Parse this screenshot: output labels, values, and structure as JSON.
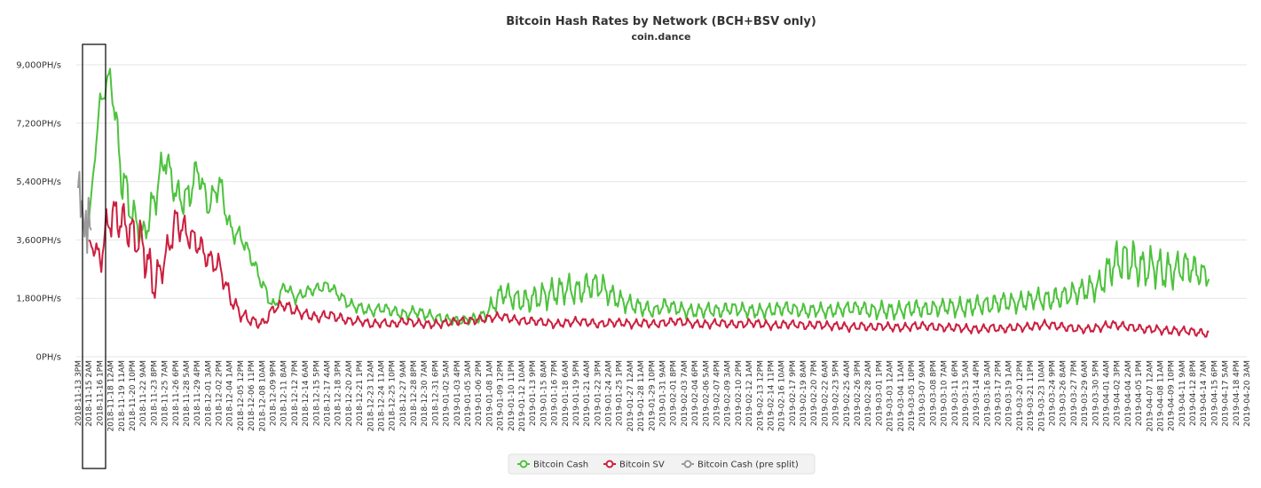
{
  "chart_data": {
    "type": "line",
    "title": "Bitcoin Hash Rates by Network (BCH+BSV only)",
    "subtitle": "coin.dance",
    "y_unit": "PH/s",
    "ylim": [
      0,
      9000
    ],
    "y_ticks": [
      "0PH/s",
      "1,800PH/s",
      "3,600PH/s",
      "5,400PH/s",
      "7,200PH/s",
      "9,000PH/s"
    ],
    "y_tick_values": [
      0,
      1800,
      3600,
      5400,
      7200,
      9000
    ],
    "x_labels": [
      "2018-11-13 3PM",
      "2018-11-15 2AM",
      "2018-11-16 1PM",
      "2018-11-18 12AM",
      "2018-11-19 11AM",
      "2018-11-20 10PM",
      "2018-11-22 9AM",
      "2018-11-23 8PM",
      "2018-11-25 7AM",
      "2018-11-26 6PM",
      "2018-11-28 5AM",
      "2018-11-29 4PM",
      "2018-12-01 3AM",
      "2018-12-02 2PM",
      "2018-12-04 1AM",
      "2018-12-05 12PM",
      "2018-12-06 11PM",
      "2018-12-08 10AM",
      "2018-12-09 9PM",
      "2018-12-11 8AM",
      "2018-12-12 7PM",
      "2018-12-14 6AM",
      "2018-12-15 5PM",
      "2018-12-17 4AM",
      "2018-12-18 3PM",
      "2018-12-20 2AM",
      "2018-12-21 1PM",
      "2018-12-23 12AM",
      "2018-12-24 11AM",
      "2018-12-25 10PM",
      "2018-12-27 9AM",
      "2018-12-28 8PM",
      "2018-12-30 7AM",
      "2018-12-31 6PM",
      "2019-01-02 5AM",
      "2019-01-03 4PM",
      "2019-01-05 3AM",
      "2019-01-06 2PM",
      "2019-01-08 1AM",
      "2019-01-09 12PM",
      "2019-01-10 11PM",
      "2019-01-12 10AM",
      "2019-01-13 9PM",
      "2019-01-15 8AM",
      "2019-01-16 7PM",
      "2019-01-18 6AM",
      "2019-01-19 5PM",
      "2019-01-21 4AM",
      "2019-01-22 3PM",
      "2019-01-24 2AM",
      "2019-01-25 1PM",
      "2019-01-27 12AM",
      "2019-01-28 11AM",
      "2019-01-29 10PM",
      "2019-01-31 9AM",
      "2019-02-01 8PM",
      "2019-02-03 7AM",
      "2019-02-04 6PM",
      "2019-02-06 5AM",
      "2019-02-07 4PM",
      "2019-02-09 3AM",
      "2019-02-10 2PM",
      "2019-02-12 1AM",
      "2019-02-13 12PM",
      "2019-02-14 11PM",
      "2019-02-16 10AM",
      "2019-02-17 9PM",
      "2019-02-19 8AM",
      "2019-02-20 7PM",
      "2019-02-22 6AM",
      "2019-02-23 5PM",
      "2019-02-25 4AM",
      "2019-02-26 3PM",
      "2019-02-28 2AM",
      "2019-03-01 1PM",
      "2019-03-03 12AM",
      "2019-03-04 11AM",
      "2019-03-05 10PM",
      "2019-03-07 9AM",
      "2019-03-08 8PM",
      "2019-03-10 7AM",
      "2019-03-11 6PM",
      "2019-03-13 5AM",
      "2019-03-14 4PM",
      "2019-03-16 3AM",
      "2019-03-17 2PM",
      "2019-03-19 1AM",
      "2019-03-20 12PM",
      "2019-03-21 11PM",
      "2019-03-23 10AM",
      "2019-03-24 9PM",
      "2019-03-26 8AM",
      "2019-03-27 7PM",
      "2019-03-29 6AM",
      "2019-03-30 5PM",
      "2019-04-01 4AM",
      "2019-04-02 3PM",
      "2019-04-04 2AM",
      "2019-04-05 1PM",
      "2019-04-07 12AM",
      "2019-04-08 11AM",
      "2019-04-09 10PM",
      "2019-04-11 9AM",
      "2019-04-12 8PM",
      "2019-04-14 7AM",
      "2019-04-15 6PM",
      "2019-04-17 5AM",
      "2019-04-18 4PM",
      "2019-04-20 3AM"
    ],
    "series": [
      {
        "name": "Bitcoin Cash",
        "color": "#4ec23e",
        "x_start": 1,
        "x_end": 104.5,
        "values": [
          4200,
          7800,
          8700,
          5600,
          4400,
          3700,
          4800,
          6200,
          5000,
          4800,
          5800,
          4600,
          5400,
          3900,
          3700,
          3000,
          2200,
          1500,
          2200,
          1800,
          2000,
          2100,
          2200,
          1900,
          1600,
          1500,
          1400,
          1500,
          1400,
          1300,
          1400,
          1300,
          1200,
          1150,
          1100,
          1150,
          1200,
          1500,
          2000,
          1800,
          1700,
          1800,
          1900,
          2000,
          2100,
          2000,
          2200,
          2200,
          1900,
          1700,
          1600,
          1500,
          1400,
          1600,
          1500,
          1400,
          1400,
          1450,
          1400,
          1500,
          1450,
          1400,
          1400,
          1450,
          1500,
          1450,
          1400,
          1450,
          1400,
          1450,
          1500,
          1500,
          1400,
          1450,
          1400,
          1450,
          1500,
          1450,
          1500,
          1550,
          1500,
          1550,
          1600,
          1600,
          1700,
          1650,
          1700,
          1800,
          1750,
          1800,
          1900,
          2000,
          2100,
          2200,
          2800,
          3000,
          2900,
          2700,
          2800,
          2600,
          2700,
          2800,
          2600,
          2500
        ],
        "amplitude": [
          0,
          300,
          400,
          900,
          600,
          500,
          700,
          600,
          500,
          700,
          500,
          400,
          500,
          400,
          300,
          250,
          250,
          250,
          200,
          200,
          200,
          200,
          200,
          200,
          200,
          200,
          200,
          200,
          200,
          200,
          200,
          200,
          180,
          180,
          180,
          180,
          200,
          350,
          400,
          400,
          450,
          450,
          500,
          500,
          500,
          500,
          500,
          500,
          400,
          350,
          300,
          300,
          250,
          250,
          250,
          250,
          250,
          250,
          250,
          250,
          250,
          250,
          250,
          250,
          250,
          250,
          250,
          250,
          250,
          250,
          250,
          250,
          300,
          300,
          300,
          300,
          300,
          300,
          300,
          300,
          350,
          350,
          350,
          350,
          350,
          350,
          350,
          350,
          400,
          400,
          400,
          400,
          450,
          500,
          700,
          800,
          800,
          700,
          700,
          700,
          600,
          600,
          500,
          400
        ]
      },
      {
        "name": "Bitcoin SV",
        "color": "#cc1f3f",
        "x_start": 1,
        "x_end": 104.5,
        "values": [
          3600,
          3000,
          4400,
          4200,
          3800,
          3400,
          2200,
          3000,
          4200,
          3800,
          3500,
          3000,
          2800,
          1800,
          1300,
          1100,
          1000,
          1500,
          1600,
          1400,
          1300,
          1200,
          1300,
          1200,
          1100,
          1100,
          1000,
          1050,
          1000,
          1100,
          1050,
          1000,
          1000,
          1050,
          1100,
          1100,
          1150,
          1200,
          1250,
          1150,
          1100,
          1100,
          1050,
          1000,
          1050,
          1100,
          1050,
          1000,
          1050,
          1050,
          1000,
          1050,
          1000,
          1050,
          1100,
          1050,
          1000,
          1000,
          1050,
          1000,
          1000,
          1050,
          1000,
          950,
          1000,
          1000,
          950,
          1000,
          950,
          950,
          900,
          950,
          900,
          950,
          900,
          900,
          950,
          950,
          900,
          900,
          900,
          850,
          850,
          900,
          850,
          900,
          900,
          950,
          1000,
          950,
          900,
          850,
          850,
          900,
          1000,
          950,
          900,
          850,
          850,
          800,
          800,
          800,
          750,
          700
        ],
        "amplitude": [
          0,
          600,
          800,
          700,
          700,
          900,
          700,
          500,
          600,
          500,
          450,
          400,
          400,
          300,
          250,
          200,
          200,
          200,
          200,
          200,
          180,
          180,
          180,
          180,
          150,
          150,
          150,
          150,
          150,
          150,
          150,
          150,
          150,
          150,
          150,
          150,
          150,
          150,
          150,
          150,
          150,
          150,
          150,
          150,
          150,
          150,
          150,
          150,
          150,
          150,
          150,
          150,
          150,
          150,
          150,
          150,
          150,
          150,
          150,
          150,
          150,
          150,
          150,
          150,
          150,
          150,
          150,
          150,
          150,
          150,
          150,
          150,
          150,
          150,
          150,
          150,
          150,
          150,
          150,
          150,
          150,
          150,
          150,
          150,
          150,
          150,
          150,
          150,
          150,
          150,
          150,
          150,
          150,
          150,
          150,
          150,
          150,
          150,
          150,
          150,
          150,
          150,
          150,
          150
        ]
      },
      {
        "name": "Bitcoin Cash (pre split)",
        "color": "#999999",
        "x_start": 0,
        "x_end": 1.2,
        "values": [
          5200,
          5700,
          4300,
          4800,
          4200,
          3700,
          4500,
          3200,
          4900,
          4000,
          3900
        ],
        "amplitude": [
          0,
          0,
          0,
          0,
          0,
          0,
          0,
          0,
          0,
          0,
          0
        ]
      }
    ]
  }
}
